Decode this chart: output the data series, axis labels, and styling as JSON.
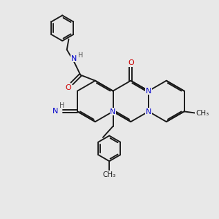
{
  "bg": "#e8e8e8",
  "bond_color": "#1a1a1a",
  "N_color": "#0000cc",
  "O_color": "#cc0000",
  "H_color": "#555555",
  "C_color": "#1a1a1a",
  "lw": 1.4,
  "fs": 8.0
}
